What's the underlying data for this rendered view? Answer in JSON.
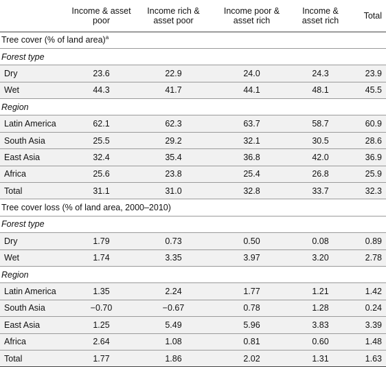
{
  "columns": {
    "income_asset_poor": "Income & asset poor",
    "income_rich_asset_poor": "Income rich & asset poor",
    "income_poor_asset_rich": "Income poor & asset rich",
    "income_asset_rich": "Income & asset rich",
    "total": "Total"
  },
  "sections": [
    {
      "title": "Tree cover (% of land area)",
      "footnote": "a",
      "forest_type": {
        "label": "Forest type",
        "rows": [
          {
            "label": "Dry",
            "values": [
              "23.6",
              "22.9",
              "24.0",
              "24.3",
              "23.9"
            ]
          },
          {
            "label": "Wet",
            "values": [
              "44.3",
              "41.7",
              "44.1",
              "48.1",
              "45.5"
            ]
          }
        ]
      },
      "region": {
        "label": "Region",
        "rows": [
          {
            "label": "Latin America",
            "values": [
              "62.1",
              "62.3",
              "63.7",
              "58.7",
              "60.9"
            ]
          },
          {
            "label": "South Asia",
            "values": [
              "25.5",
              "29.2",
              "32.1",
              "30.5",
              "28.6"
            ]
          },
          {
            "label": "East Asia",
            "values": [
              "32.4",
              "35.4",
              "36.8",
              "42.0",
              "36.9"
            ]
          },
          {
            "label": "Africa",
            "values": [
              "25.6",
              "23.8",
              "25.4",
              "26.8",
              "25.9"
            ]
          },
          {
            "label": "Total",
            "values": [
              "31.1",
              "31.0",
              "32.8",
              "33.7",
              "32.3"
            ]
          }
        ]
      }
    },
    {
      "title": "Tree cover loss (% of land area, 2000–2010)",
      "forest_type": {
        "label": "Forest type",
        "rows": [
          {
            "label": "Dry",
            "values": [
              "1.79",
              "0.73",
              "0.50",
              "0.08",
              "0.89"
            ]
          },
          {
            "label": "Wet",
            "values": [
              "1.74",
              "3.35",
              "3.97",
              "3.20",
              "2.78"
            ]
          }
        ]
      },
      "region": {
        "label": "Region",
        "rows": [
          {
            "label": "Latin America",
            "values": [
              "1.35",
              "2.24",
              "1.77",
              "1.21",
              "1.42"
            ]
          },
          {
            "label": "South Asia",
            "values": [
              "−0.70",
              "−0.67",
              "0.78",
              "1.28",
              "0.24"
            ]
          },
          {
            "label": "East Asia",
            "values": [
              "1.25",
              "5.49",
              "5.96",
              "3.83",
              "3.39"
            ]
          },
          {
            "label": "Africa",
            "values": [
              "2.64",
              "1.08",
              "0.81",
              "0.60",
              "1.48"
            ]
          },
          {
            "label": "Total",
            "values": [
              "1.77",
              "1.86",
              "2.02",
              "1.31",
              "1.63"
            ]
          }
        ]
      }
    }
  ]
}
